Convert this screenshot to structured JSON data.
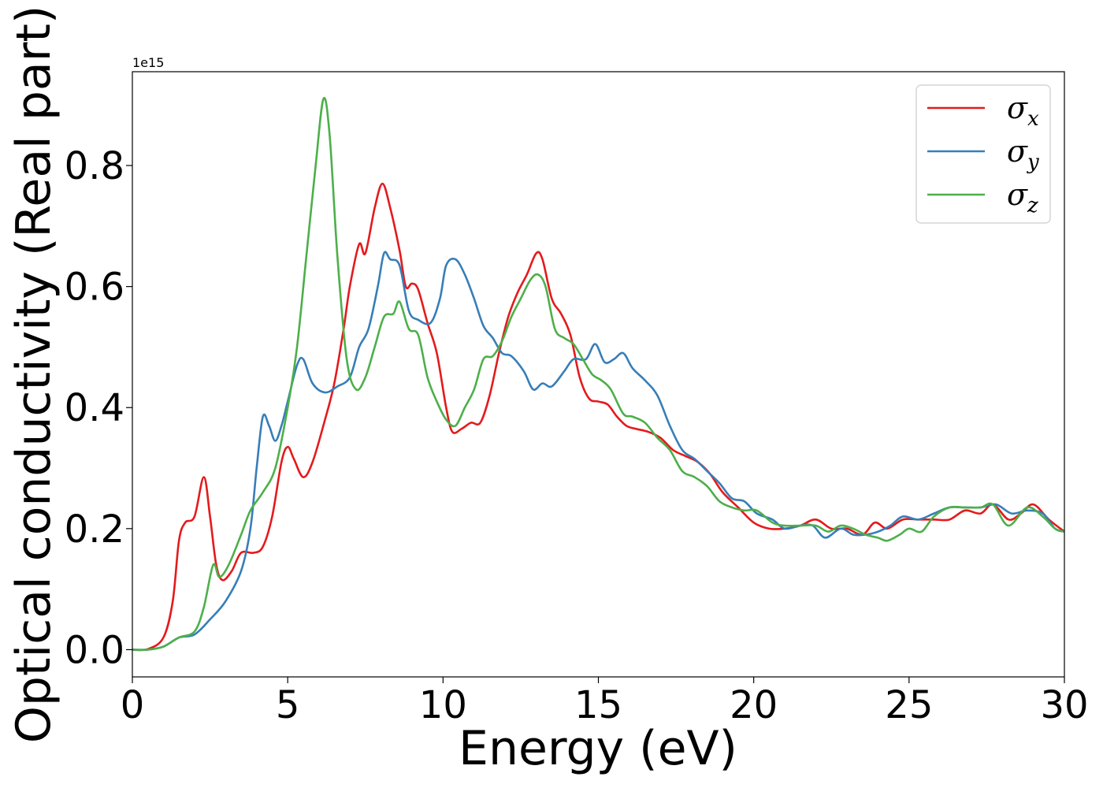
{
  "chart_data": {
    "type": "line",
    "title": "",
    "xlabel": "Energy (eV)",
    "ylabel": "Optical conductivity (Real part)",
    "y_offset_text": "1e15",
    "xlim": [
      0,
      30
    ],
    "ylim": [
      -0.045,
      0.955
    ],
    "x_ticks": [
      0,
      5,
      10,
      15,
      20,
      25,
      30
    ],
    "x_tick_labels": [
      "0",
      "5",
      "10",
      "15",
      "20",
      "25",
      "30"
    ],
    "y_ticks": [
      0.0,
      0.2,
      0.4,
      0.6,
      0.8
    ],
    "y_tick_labels": [
      "0.0",
      "0.2",
      "0.4",
      "0.6",
      "0.8"
    ],
    "grid": false,
    "legend_position": "top-right",
    "series": [
      {
        "name": "σx",
        "legend_base": "σ",
        "legend_sub": "x",
        "color": "#e41a1c",
        "points": [
          [
            0,
            0
          ],
          [
            0.5,
            0.001
          ],
          [
            1.0,
            0.02
          ],
          [
            1.3,
            0.08
          ],
          [
            1.5,
            0.18
          ],
          [
            1.7,
            0.21
          ],
          [
            2.0,
            0.22
          ],
          [
            2.3,
            0.285
          ],
          [
            2.5,
            0.22
          ],
          [
            2.7,
            0.14
          ],
          [
            2.9,
            0.115
          ],
          [
            3.2,
            0.13
          ],
          [
            3.5,
            0.16
          ],
          [
            3.9,
            0.16
          ],
          [
            4.2,
            0.17
          ],
          [
            4.5,
            0.22
          ],
          [
            4.8,
            0.31
          ],
          [
            5.0,
            0.335
          ],
          [
            5.2,
            0.315
          ],
          [
            5.5,
            0.285
          ],
          [
            5.8,
            0.31
          ],
          [
            6.2,
            0.38
          ],
          [
            6.5,
            0.44
          ],
          [
            6.8,
            0.53
          ],
          [
            7.0,
            0.6
          ],
          [
            7.3,
            0.67
          ],
          [
            7.5,
            0.655
          ],
          [
            7.8,
            0.73
          ],
          [
            8.05,
            0.77
          ],
          [
            8.3,
            0.73
          ],
          [
            8.6,
            0.66
          ],
          [
            8.8,
            0.6
          ],
          [
            9.0,
            0.605
          ],
          [
            9.2,
            0.595
          ],
          [
            9.5,
            0.54
          ],
          [
            9.8,
            0.49
          ],
          [
            10.1,
            0.4
          ],
          [
            10.3,
            0.36
          ],
          [
            10.6,
            0.365
          ],
          [
            10.9,
            0.375
          ],
          [
            11.2,
            0.375
          ],
          [
            11.5,
            0.42
          ],
          [
            11.8,
            0.49
          ],
          [
            12.1,
            0.55
          ],
          [
            12.4,
            0.59
          ],
          [
            12.7,
            0.62
          ],
          [
            13.0,
            0.655
          ],
          [
            13.2,
            0.645
          ],
          [
            13.5,
            0.58
          ],
          [
            13.8,
            0.555
          ],
          [
            14.1,
            0.52
          ],
          [
            14.4,
            0.45
          ],
          [
            14.7,
            0.415
          ],
          [
            15.0,
            0.41
          ],
          [
            15.3,
            0.405
          ],
          [
            15.6,
            0.385
          ],
          [
            15.9,
            0.37
          ],
          [
            16.2,
            0.365
          ],
          [
            16.6,
            0.36
          ],
          [
            17.0,
            0.35
          ],
          [
            17.4,
            0.33
          ],
          [
            17.8,
            0.32
          ],
          [
            18.2,
            0.31
          ],
          [
            18.6,
            0.29
          ],
          [
            19.0,
            0.26
          ],
          [
            19.5,
            0.235
          ],
          [
            20.0,
            0.21
          ],
          [
            20.5,
            0.2
          ],
          [
            21.0,
            0.2
          ],
          [
            21.5,
            0.205
          ],
          [
            22.0,
            0.215
          ],
          [
            22.5,
            0.2
          ],
          [
            23.0,
            0.2
          ],
          [
            23.5,
            0.19
          ],
          [
            23.9,
            0.21
          ],
          [
            24.3,
            0.2
          ],
          [
            24.8,
            0.215
          ],
          [
            25.3,
            0.215
          ],
          [
            25.8,
            0.215
          ],
          [
            26.3,
            0.215
          ],
          [
            26.8,
            0.23
          ],
          [
            27.3,
            0.225
          ],
          [
            27.7,
            0.24
          ],
          [
            28.2,
            0.215
          ],
          [
            28.6,
            0.225
          ],
          [
            29.0,
            0.24
          ],
          [
            29.5,
            0.215
          ],
          [
            30.0,
            0.195
          ]
        ]
      },
      {
        "name": "σy",
        "legend_base": "σ",
        "legend_sub": "y",
        "color": "#377eb8",
        "points": [
          [
            0,
            0
          ],
          [
            0.5,
            0.0
          ],
          [
            1.0,
            0.005
          ],
          [
            1.5,
            0.02
          ],
          [
            2.0,
            0.025
          ],
          [
            2.5,
            0.05
          ],
          [
            3.0,
            0.08
          ],
          [
            3.5,
            0.13
          ],
          [
            3.8,
            0.2
          ],
          [
            4.0,
            0.3
          ],
          [
            4.2,
            0.385
          ],
          [
            4.4,
            0.37
          ],
          [
            4.6,
            0.345
          ],
          [
            4.8,
            0.37
          ],
          [
            5.0,
            0.41
          ],
          [
            5.3,
            0.47
          ],
          [
            5.5,
            0.48
          ],
          [
            5.8,
            0.44
          ],
          [
            6.2,
            0.425
          ],
          [
            6.6,
            0.435
          ],
          [
            7.0,
            0.45
          ],
          [
            7.3,
            0.5
          ],
          [
            7.6,
            0.53
          ],
          [
            7.9,
            0.6
          ],
          [
            8.1,
            0.655
          ],
          [
            8.3,
            0.645
          ],
          [
            8.6,
            0.635
          ],
          [
            8.9,
            0.56
          ],
          [
            9.2,
            0.545
          ],
          [
            9.6,
            0.54
          ],
          [
            9.9,
            0.58
          ],
          [
            10.1,
            0.635
          ],
          [
            10.4,
            0.645
          ],
          [
            10.7,
            0.62
          ],
          [
            11.0,
            0.58
          ],
          [
            11.3,
            0.535
          ],
          [
            11.6,
            0.515
          ],
          [
            11.9,
            0.49
          ],
          [
            12.2,
            0.485
          ],
          [
            12.6,
            0.46
          ],
          [
            12.9,
            0.43
          ],
          [
            13.2,
            0.44
          ],
          [
            13.5,
            0.435
          ],
          [
            13.9,
            0.46
          ],
          [
            14.2,
            0.48
          ],
          [
            14.6,
            0.48
          ],
          [
            14.9,
            0.505
          ],
          [
            15.2,
            0.475
          ],
          [
            15.5,
            0.48
          ],
          [
            15.8,
            0.49
          ],
          [
            16.1,
            0.465
          ],
          [
            16.5,
            0.445
          ],
          [
            16.9,
            0.42
          ],
          [
            17.3,
            0.37
          ],
          [
            17.7,
            0.33
          ],
          [
            18.1,
            0.315
          ],
          [
            18.5,
            0.295
          ],
          [
            18.9,
            0.275
          ],
          [
            19.3,
            0.25
          ],
          [
            19.7,
            0.245
          ],
          [
            20.1,
            0.225
          ],
          [
            20.6,
            0.215
          ],
          [
            21.0,
            0.2
          ],
          [
            21.5,
            0.205
          ],
          [
            21.9,
            0.205
          ],
          [
            22.3,
            0.185
          ],
          [
            22.8,
            0.2
          ],
          [
            23.2,
            0.19
          ],
          [
            23.6,
            0.19
          ],
          [
            24.0,
            0.195
          ],
          [
            24.4,
            0.205
          ],
          [
            24.8,
            0.22
          ],
          [
            25.3,
            0.215
          ],
          [
            25.8,
            0.225
          ],
          [
            26.3,
            0.235
          ],
          [
            26.8,
            0.235
          ],
          [
            27.3,
            0.235
          ],
          [
            27.8,
            0.24
          ],
          [
            28.3,
            0.225
          ],
          [
            28.8,
            0.23
          ],
          [
            29.3,
            0.225
          ],
          [
            29.7,
            0.2
          ],
          [
            30.0,
            0.195
          ]
        ]
      },
      {
        "name": "σz",
        "legend_base": "σ",
        "legend_sub": "z",
        "color": "#4daf4a",
        "points": [
          [
            0,
            0
          ],
          [
            0.5,
            0.0
          ],
          [
            1.0,
            0.005
          ],
          [
            1.5,
            0.02
          ],
          [
            2.0,
            0.03
          ],
          [
            2.3,
            0.07
          ],
          [
            2.6,
            0.14
          ],
          [
            2.8,
            0.12
          ],
          [
            3.1,
            0.14
          ],
          [
            3.5,
            0.19
          ],
          [
            3.8,
            0.23
          ],
          [
            4.2,
            0.26
          ],
          [
            4.6,
            0.3
          ],
          [
            5.0,
            0.4
          ],
          [
            5.3,
            0.5
          ],
          [
            5.6,
            0.65
          ],
          [
            5.9,
            0.8
          ],
          [
            6.15,
            0.91
          ],
          [
            6.35,
            0.85
          ],
          [
            6.6,
            0.65
          ],
          [
            6.9,
            0.48
          ],
          [
            7.2,
            0.43
          ],
          [
            7.5,
            0.45
          ],
          [
            7.8,
            0.5
          ],
          [
            8.1,
            0.55
          ],
          [
            8.4,
            0.555
          ],
          [
            8.6,
            0.575
          ],
          [
            8.9,
            0.53
          ],
          [
            9.2,
            0.52
          ],
          [
            9.5,
            0.45
          ],
          [
            9.8,
            0.41
          ],
          [
            10.1,
            0.38
          ],
          [
            10.4,
            0.37
          ],
          [
            10.7,
            0.4
          ],
          [
            11.0,
            0.43
          ],
          [
            11.3,
            0.48
          ],
          [
            11.6,
            0.485
          ],
          [
            11.9,
            0.51
          ],
          [
            12.2,
            0.55
          ],
          [
            12.5,
            0.58
          ],
          [
            12.8,
            0.61
          ],
          [
            13.05,
            0.62
          ],
          [
            13.3,
            0.6
          ],
          [
            13.6,
            0.53
          ],
          [
            13.9,
            0.515
          ],
          [
            14.2,
            0.505
          ],
          [
            14.5,
            0.48
          ],
          [
            14.8,
            0.455
          ],
          [
            15.1,
            0.445
          ],
          [
            15.4,
            0.43
          ],
          [
            15.8,
            0.39
          ],
          [
            16.1,
            0.385
          ],
          [
            16.5,
            0.375
          ],
          [
            16.9,
            0.35
          ],
          [
            17.3,
            0.33
          ],
          [
            17.7,
            0.295
          ],
          [
            18.1,
            0.285
          ],
          [
            18.5,
            0.27
          ],
          [
            18.9,
            0.245
          ],
          [
            19.3,
            0.235
          ],
          [
            19.7,
            0.23
          ],
          [
            20.1,
            0.23
          ],
          [
            20.6,
            0.21
          ],
          [
            21.0,
            0.205
          ],
          [
            21.5,
            0.205
          ],
          [
            22.0,
            0.205
          ],
          [
            22.4,
            0.195
          ],
          [
            22.8,
            0.205
          ],
          [
            23.2,
            0.2
          ],
          [
            23.6,
            0.19
          ],
          [
            24.0,
            0.185
          ],
          [
            24.3,
            0.18
          ],
          [
            24.7,
            0.19
          ],
          [
            25.0,
            0.2
          ],
          [
            25.4,
            0.195
          ],
          [
            25.8,
            0.22
          ],
          [
            26.3,
            0.235
          ],
          [
            26.8,
            0.235
          ],
          [
            27.3,
            0.235
          ],
          [
            27.7,
            0.24
          ],
          [
            28.2,
            0.205
          ],
          [
            28.8,
            0.235
          ],
          [
            29.3,
            0.22
          ],
          [
            29.7,
            0.2
          ],
          [
            30.0,
            0.195
          ]
        ]
      }
    ]
  }
}
